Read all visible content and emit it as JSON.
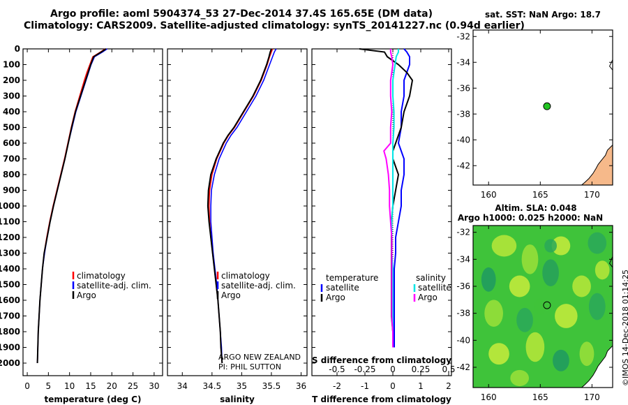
{
  "header": {
    "line1": "Argo profile: aoml 5904374_53 27-Dec-2014 37.4S 165.65E (DM data)",
    "line2": "Climatology: CARS2009. Satellite-adjusted climatology: synTS_20141227.nc (0.94d earlier)"
  },
  "colors": {
    "climatology": "#ff0000",
    "satellite": "#0000ff",
    "argo": "#000000",
    "argo_s_diff": "#ff00ff",
    "sat_s_diff": "#00e5e5",
    "land": "#f6b98a",
    "sla_bg": "#3fc33a"
  },
  "credit": {
    "program": "ARGO NEW ZEALAND",
    "pi": "PI: PHIL SUTTON",
    "watermark": "©IMOS 14-Dec-2018 01:14:25"
  },
  "chart_data": [
    {
      "id": "temperature",
      "type": "line",
      "xlabel": "temperature (deg C)",
      "ylabel": "",
      "xlim": [
        -1,
        32
      ],
      "ylim": [
        2080,
        0
      ],
      "xticks": [
        0,
        5,
        10,
        15,
        20,
        25,
        30
      ],
      "yticks": [
        0,
        100,
        200,
        300,
        400,
        500,
        600,
        700,
        800,
        900,
        1000,
        1100,
        1200,
        1300,
        1400,
        1500,
        1600,
        1700,
        1800,
        1900,
        2000
      ],
      "depth": [
        0,
        20,
        50,
        100,
        150,
        200,
        300,
        400,
        500,
        600,
        700,
        800,
        900,
        1000,
        1100,
        1200,
        1300,
        1400,
        1500,
        1600,
        1700,
        1800,
        1900,
        2000
      ],
      "series": [
        {
          "name": "climatology",
          "values": [
            18.4,
            17.3,
            15.5,
            14.8,
            14.1,
            13.5,
            12.4,
            11.3,
            10.4,
            9.6,
            8.8,
            7.9,
            7.0,
            6.1,
            5.3,
            4.6,
            4.0,
            3.6,
            3.3,
            3.0,
            2.8,
            2.6,
            2.5,
            2.4
          ]
        },
        {
          "name": "satellite-adj. clim.",
          "values": [
            18.9,
            17.8,
            15.9,
            15.1,
            14.5,
            13.9,
            12.7,
            11.5,
            10.6,
            9.7,
            8.9,
            8.0,
            7.1,
            6.2,
            5.4,
            4.7,
            4.1,
            3.6,
            3.3,
            3.0,
            2.8,
            2.6,
            2.5,
            2.4
          ]
        },
        {
          "name": "Argo",
          "values": [
            18.6,
            17.5,
            15.7,
            15.0,
            14.4,
            13.8,
            12.6,
            11.4,
            10.5,
            9.7,
            8.9,
            8.0,
            7.1,
            6.2,
            5.4,
            4.7,
            4.0,
            3.6,
            3.3,
            3.0,
            2.8,
            2.6,
            2.5,
            2.4
          ]
        }
      ],
      "legend": [
        "climatology",
        "satellite-adj. clim.",
        "Argo"
      ]
    },
    {
      "id": "salinity",
      "type": "line",
      "xlabel": "salinity",
      "xlim": [
        33.75,
        36.1
      ],
      "ylim": [
        2080,
        0
      ],
      "xticks": [
        34,
        34.5,
        35,
        35.5,
        36
      ],
      "xtick_labels": [
        "34",
        "34.5",
        "35",
        "35.5",
        "36"
      ],
      "depth": [
        0,
        20,
        50,
        100,
        150,
        200,
        300,
        400,
        500,
        550,
        600,
        700,
        800,
        900,
        1000,
        1100,
        1200,
        1300,
        1400,
        1500,
        1600,
        1700,
        1800,
        1900,
        2000
      ],
      "series": [
        {
          "name": "climatology",
          "values": [
            35.52,
            35.5,
            35.47,
            35.43,
            35.38,
            35.33,
            35.2,
            35.04,
            34.88,
            34.78,
            34.7,
            34.58,
            34.5,
            34.46,
            34.45,
            34.46,
            34.48,
            34.51,
            34.54,
            34.57,
            34.6,
            34.62,
            34.64,
            34.65,
            34.67
          ]
        },
        {
          "name": "satellite-adj. clim.",
          "values": [
            35.58,
            35.55,
            35.52,
            35.47,
            35.42,
            35.37,
            35.24,
            35.08,
            34.92,
            34.82,
            34.74,
            34.62,
            34.54,
            34.49,
            34.48,
            34.48,
            34.5,
            34.52,
            34.55,
            34.58,
            34.6,
            34.62,
            34.64,
            34.66,
            34.67
          ]
        },
        {
          "name": "Argo",
          "values": [
            35.5,
            35.48,
            35.46,
            35.42,
            35.37,
            35.32,
            35.19,
            35.03,
            34.87,
            34.77,
            34.69,
            34.57,
            34.48,
            34.44,
            34.43,
            34.45,
            34.48,
            34.51,
            34.54,
            34.57,
            34.6,
            34.62,
            34.64,
            34.65,
            34.67
          ]
        }
      ],
      "legend": [
        "climatology",
        "satellite-adj. clim.",
        "Argo"
      ],
      "annotations": [
        "ARGO NEW ZEALAND",
        "PI: PHIL SUTTON"
      ]
    },
    {
      "id": "differences",
      "type": "line",
      "xlabel": "T difference from climatology",
      "x2label": "S difference from climatology",
      "xlim": [
        -2.9,
        2.1
      ],
      "ylim": [
        2080,
        0
      ],
      "xticks": [
        -2,
        -1,
        0,
        1,
        2
      ],
      "x2ticks": [
        -0.5,
        -0.25,
        0,
        0.25,
        0.5
      ],
      "x2tick_labels": [
        "-0.5",
        "-0.25",
        "0",
        "0.25",
        "0.5"
      ],
      "s_scale": 4,
      "depth": [
        0,
        20,
        50,
        100,
        150,
        200,
        300,
        400,
        500,
        600,
        650,
        700,
        800,
        900,
        1000,
        1100,
        1200,
        1300,
        1400,
        1500,
        1600,
        1700,
        1800,
        1900
      ],
      "series": [
        {
          "name": "temperature satellite",
          "values": [
            0.4,
            0.5,
            0.6,
            0.6,
            0.5,
            0.4,
            0.4,
            0.3,
            0.3,
            0.2,
            0.3,
            0.4,
            0.4,
            0.3,
            0.3,
            0.2,
            0.1,
            0.1,
            0.05,
            0.05,
            0.05,
            0.05,
            0.05,
            0.05
          ]
        },
        {
          "name": "temperature Argo",
          "values": [
            -1.2,
            -0.3,
            -0.2,
            0.2,
            0.5,
            0.7,
            0.6,
            0.4,
            0.3,
            0.1,
            0.0,
            0.0,
            0.2,
            0.1,
            0.0,
            -0.05,
            -0.05,
            -0.05,
            -0.05,
            -0.05,
            -0.05,
            -0.05,
            0.0,
            0.0
          ]
        },
        {
          "name": "salinity satellite",
          "values": [
            0.05,
            0.05,
            0.03,
            0.02,
            0.01,
            0.0,
            0.0,
            0.01,
            0.01,
            0.0,
            0.0,
            0.0,
            0.0,
            0.0,
            0.0,
            -0.01,
            -0.01,
            -0.01,
            0.0,
            0.0,
            0.0,
            0.0,
            0.0,
            0.0
          ]
        },
        {
          "name": "salinity Argo",
          "values": [
            -0.02,
            -0.02,
            -0.01,
            0.0,
            -0.01,
            -0.02,
            -0.02,
            -0.01,
            -0.02,
            -0.02,
            -0.08,
            -0.06,
            -0.04,
            -0.03,
            -0.03,
            -0.02,
            -0.01,
            -0.01,
            -0.01,
            -0.01,
            -0.01,
            -0.01,
            0.0,
            0.0
          ]
        }
      ],
      "legend_left": {
        "title": "temperature",
        "items": [
          "satellite",
          "Argo"
        ]
      },
      "legend_right": {
        "title": "salinity",
        "items": [
          "satellite",
          "Argo"
        ]
      }
    },
    {
      "id": "sst_map",
      "type": "scatter",
      "title": "sat. SST: NaN Argo: 18.7",
      "xlim": [
        158.5,
        172
      ],
      "ylim": [
        -43.5,
        -31.5
      ],
      "xticks": [
        160,
        165,
        170
      ],
      "yticks": [
        -32,
        -34,
        -36,
        -38,
        -40,
        -42
      ],
      "point": {
        "lon": 165.65,
        "lat": -37.4
      }
    },
    {
      "id": "sla_map",
      "type": "heatmap",
      "title_line1": "Altim. SLA: 0.048",
      "title_line2": "Argo h1000: 0.025 h2000: NaN",
      "xlim": [
        158.5,
        172
      ],
      "ylim": [
        -43.5,
        -31.5
      ],
      "xticks": [
        160,
        165,
        170
      ],
      "yticks": [
        -32,
        -34,
        -36,
        -38,
        -40,
        -42
      ],
      "point": {
        "lon": 165.65,
        "lat": -37.4
      }
    }
  ]
}
